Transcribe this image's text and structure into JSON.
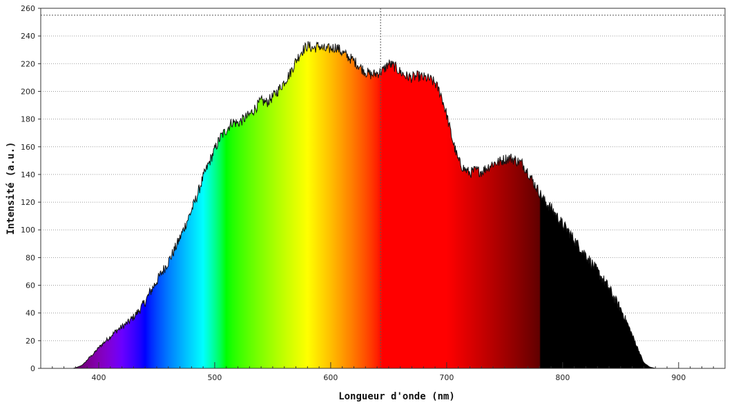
{
  "chart_data": {
    "type": "area",
    "title": "",
    "xlabel": "Longueur d'onde (nm)",
    "ylabel": "Intensité (a.u.)",
    "xlim": [
      350,
      940
    ],
    "ylim": [
      0,
      260
    ],
    "x_ticks": [
      400,
      500,
      600,
      700,
      800,
      900
    ],
    "y_ticks": [
      0,
      20,
      40,
      60,
      80,
      100,
      120,
      140,
      160,
      180,
      200,
      220,
      240,
      260
    ],
    "grid": true,
    "saturation_level": 255,
    "cursor_wavelength": 643,
    "fill": "spectral colour by wavelength, black beyond 780 nm",
    "series": [
      {
        "x": [
          355,
          360,
          365,
          370,
          375,
          378,
          382,
          385,
          388,
          390,
          392,
          395,
          398,
          400,
          405,
          410,
          415,
          420,
          425,
          430,
          435,
          440,
          445,
          450,
          455,
          460,
          465,
          470,
          475,
          480,
          485,
          490,
          495,
          500,
          505,
          510,
          515,
          520,
          525,
          530,
          535,
          540,
          545,
          550,
          555,
          560,
          565,
          570,
          575,
          580,
          585,
          590,
          595,
          600,
          605,
          610,
          615,
          620,
          625,
          630,
          635,
          640,
          645,
          650,
          655,
          660,
          665,
          670,
          675,
          680,
          685,
          690,
          695,
          700,
          705,
          710,
          715,
          720,
          725,
          730,
          735,
          740,
          745,
          750,
          755,
          760,
          765,
          770,
          775,
          780,
          785,
          790,
          795,
          800,
          805,
          810,
          815,
          820,
          825,
          830,
          835,
          840,
          845,
          850,
          855,
          860,
          865,
          870,
          875,
          880
        ],
        "y": [
          0,
          0,
          0,
          0,
          0,
          0,
          1,
          2,
          4,
          6,
          8,
          10,
          13,
          15,
          19,
          23,
          27,
          30,
          33,
          37,
          42,
          48,
          56,
          63,
          70,
          77,
          85,
          94,
          104,
          114,
          125,
          138,
          148,
          158,
          167,
          172,
          178,
          177,
          180,
          183,
          188,
          193,
          192,
          196,
          201,
          207,
          213,
          222,
          229,
          233,
          231,
          233,
          230,
          231,
          232,
          228,
          225,
          222,
          218,
          214,
          212,
          213,
          215,
          220,
          218,
          214,
          211,
          210,
          211,
          210,
          209,
          206,
          198,
          183,
          165,
          150,
          144,
          141,
          143,
          142,
          145,
          148,
          149,
          151,
          152,
          150,
          148,
          142,
          134,
          127,
          120,
          116,
          110,
          104,
          99,
          93,
          87,
          82,
          76,
          70,
          64,
          58,
          50,
          43,
          34,
          24,
          14,
          4,
          1,
          0
        ]
      }
    ]
  }
}
